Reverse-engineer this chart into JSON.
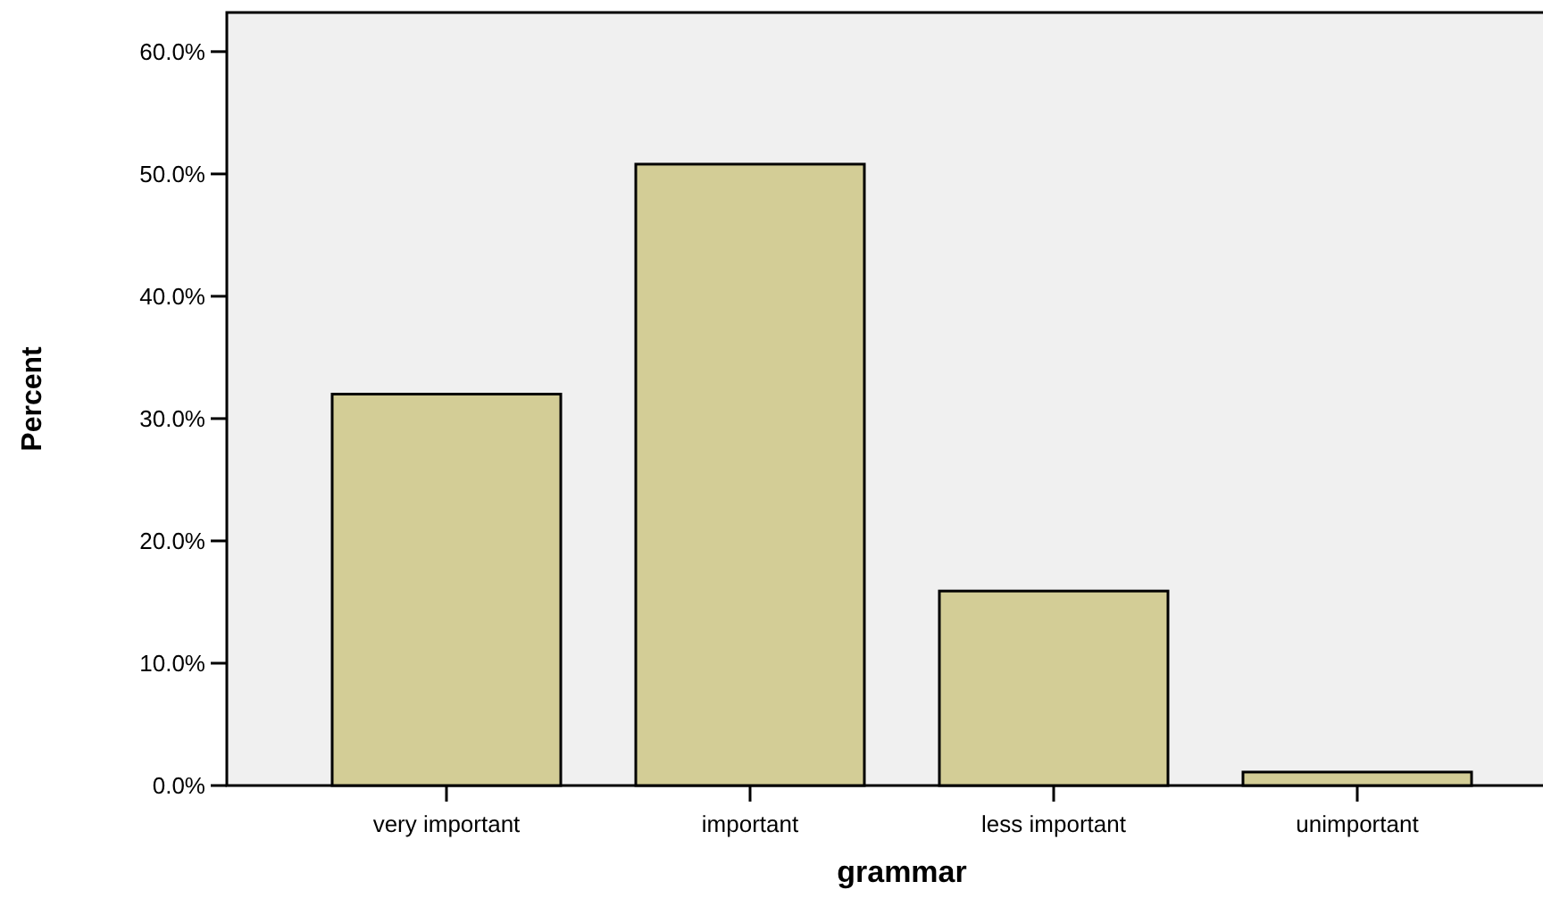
{
  "chart_data": {
    "type": "bar",
    "xlabel": "grammar",
    "ylabel": "Percent",
    "categories": [
      "very important",
      "important",
      "less important",
      "unimportant"
    ],
    "values": [
      32.0,
      50.8,
      15.9,
      1.1
    ],
    "color": "#d3cd96",
    "ylim": [
      0,
      63.2
    ],
    "yticks": [
      {
        "value": 0,
        "label": "0.0%"
      },
      {
        "value": 10,
        "label": "10.0%"
      },
      {
        "value": 20,
        "label": "20.0%"
      },
      {
        "value": 30,
        "label": "30.0%"
      },
      {
        "value": 40,
        "label": "40.0%"
      },
      {
        "value": 50,
        "label": "50.0%"
      },
      {
        "value": 60,
        "label": "60.0%"
      }
    ]
  }
}
